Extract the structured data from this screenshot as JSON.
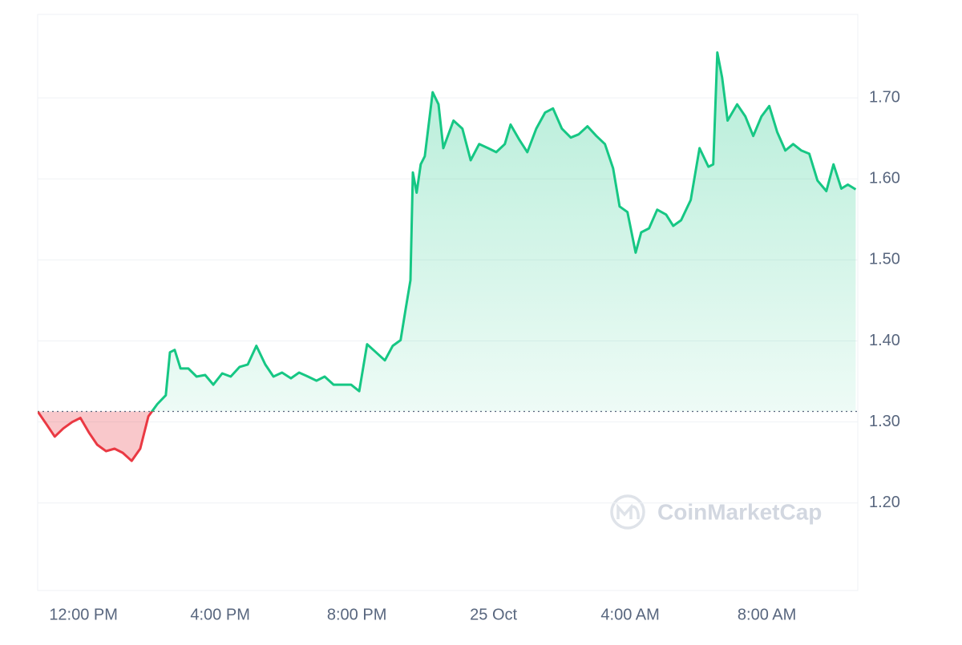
{
  "chart_data": {
    "type": "line",
    "watermark": "CoinMarketCap",
    "color_up": "#16c784",
    "color_down": "#ea3943",
    "baseline": 1.313,
    "x": [
      10.66,
      10.92,
      11.16,
      11.41,
      11.67,
      11.91,
      12.16,
      12.4,
      12.66,
      12.91,
      13.15,
      13.41,
      13.66,
      13.9,
      14.16,
      14.41,
      14.53,
      14.67,
      14.84,
      15.07,
      15.31,
      15.56,
      15.8,
      16.06,
      16.31,
      16.57,
      16.81,
      17.06,
      17.32,
      17.56,
      17.81,
      18.07,
      18.31,
      18.57,
      18.82,
      19.06,
      19.32,
      19.57,
      19.83,
      20.07,
      20.3,
      20.56,
      20.82,
      21.05,
      21.28,
      21.43,
      21.57,
      21.64,
      21.75,
      21.87,
      21.99,
      22.22,
      22.39,
      22.53,
      22.83,
      23.09,
      23.33,
      23.58,
      23.84,
      24.08,
      24.33,
      24.5,
      24.76,
      24.99,
      25.25,
      25.51,
      25.74,
      26.0,
      26.26,
      26.49,
      26.75,
      27.01,
      27.26,
      27.5,
      27.69,
      27.92,
      28.16,
      28.32,
      28.55,
      28.79,
      29.05,
      29.26,
      29.49,
      29.77,
      30.03,
      30.29,
      30.43,
      30.55,
      30.69,
      30.85,
      31.13,
      31.37,
      31.6,
      31.84,
      32.07,
      32.3,
      32.54,
      32.77,
      33.01,
      33.24,
      33.48,
      33.74,
      33.95,
      34.18,
      34.37,
      34.6
    ],
    "values": [
      1.313,
      1.297,
      1.282,
      1.292,
      1.3,
      1.305,
      1.287,
      1.272,
      1.264,
      1.267,
      1.262,
      1.252,
      1.267,
      1.307,
      1.322,
      1.333,
      1.386,
      1.389,
      1.366,
      1.366,
      1.356,
      1.358,
      1.346,
      1.36,
      1.356,
      1.368,
      1.371,
      1.394,
      1.371,
      1.356,
      1.361,
      1.354,
      1.361,
      1.356,
      1.351,
      1.356,
      1.346,
      1.346,
      1.346,
      1.338,
      1.396,
      1.386,
      1.376,
      1.394,
      1.401,
      1.44,
      1.475,
      1.608,
      1.583,
      1.618,
      1.628,
      1.707,
      1.692,
      1.638,
      1.672,
      1.662,
      1.623,
      1.643,
      1.638,
      1.633,
      1.643,
      1.667,
      1.648,
      1.633,
      1.662,
      1.682,
      1.687,
      1.662,
      1.651,
      1.655,
      1.665,
      1.653,
      1.643,
      1.613,
      1.566,
      1.559,
      1.509,
      1.534,
      1.539,
      1.562,
      1.556,
      1.542,
      1.549,
      1.574,
      1.638,
      1.615,
      1.618,
      1.756,
      1.725,
      1.672,
      1.692,
      1.677,
      1.653,
      1.677,
      1.69,
      1.658,
      1.635,
      1.643,
      1.635,
      1.631,
      1.598,
      1.585,
      1.618,
      1.588,
      1.593,
      1.587
    ],
    "xlim": [
      10.66,
      34.66
    ],
    "xticks": [
      {
        "value": 12,
        "label": "12:00 PM"
      },
      {
        "value": 16,
        "label": "4:00 PM"
      },
      {
        "value": 20,
        "label": "8:00 PM"
      },
      {
        "value": 24,
        "label": "25 Oct"
      },
      {
        "value": 28,
        "label": "4:00 AM"
      },
      {
        "value": 32,
        "label": "8:00 AM"
      }
    ],
    "ylim": [
      1.092,
      1.803
    ],
    "yticks": [
      {
        "value": 1.2,
        "label": "1.20"
      },
      {
        "value": 1.3,
        "label": "1.30"
      },
      {
        "value": 1.4,
        "label": "1.40"
      },
      {
        "value": 1.5,
        "label": "1.50"
      },
      {
        "value": 1.6,
        "label": "1.60"
      },
      {
        "value": 1.7,
        "label": "1.70"
      }
    ],
    "grid": true
  }
}
